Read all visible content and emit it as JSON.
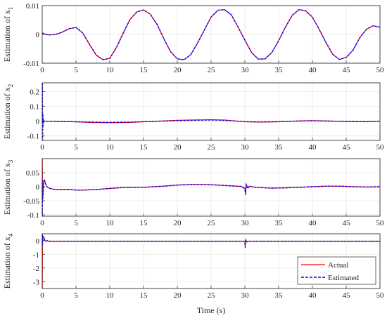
{
  "chart_data": {
    "type": "line",
    "xlabel": "Time (s)",
    "xlim": [
      0,
      50
    ],
    "x_ticks": [
      "0",
      "5",
      "10",
      "15",
      "20",
      "25",
      "30",
      "35",
      "40",
      "45",
      "50"
    ],
    "grid": true,
    "legend": {
      "placement": "bottom-right",
      "entries": [
        "Actual",
        "Estimated"
      ]
    },
    "colors": {
      "actual": "#ff0000",
      "estimated": "#0000ff"
    },
    "subplots": [
      {
        "ylabel_prefix": "Estimation of ",
        "ylabel_var": "x",
        "ylabel_sub": "1",
        "ylim": [
          -0.01,
          0.01
        ],
        "y_ticks": [
          {
            "value": 0.01,
            "label": "0.01"
          },
          {
            "value": 0,
            "label": "0"
          },
          {
            "value": -0.01,
            "label": "-0.01"
          }
        ],
        "series": [
          {
            "role": "actual",
            "x": [
              0,
              0.5,
              1,
              2,
              3,
              4,
              5,
              6,
              7,
              8,
              9,
              10,
              11,
              12,
              13,
              14,
              15,
              16,
              17,
              18,
              19,
              20,
              21,
              22,
              23,
              24,
              25,
              26,
              27,
              28,
              29,
              30,
              31,
              32,
              33,
              34,
              35,
              36,
              37,
              38,
              39,
              40,
              41,
              42,
              43,
              44,
              45,
              46,
              47,
              48,
              49,
              50
            ],
            "y": [
              0.0002,
              0,
              -0.0002,
              0,
              0.0008,
              0.002,
              0.0024,
              0.0005,
              -0.0035,
              -0.0072,
              -0.0088,
              -0.0083,
              -0.0045,
              0.0005,
              0.0052,
              0.0078,
              0.0085,
              0.007,
              0.0035,
              -0.0015,
              -0.006,
              -0.0085,
              -0.0088,
              -0.007,
              -0.003,
              0.0015,
              0.006,
              0.0084,
              0.0086,
              0.0068,
              0.0025,
              -0.002,
              -0.0063,
              -0.0086,
              -0.0085,
              -0.0063,
              -0.0022,
              0.0025,
              0.0066,
              0.0086,
              0.0082,
              0.006,
              0.0018,
              -0.0028,
              -0.0069,
              -0.0087,
              -0.008,
              -0.0055,
              -0.0012,
              0.0018,
              0.003,
              0.0025
            ]
          },
          {
            "role": "estimated",
            "x": [
              0,
              0.5,
              1,
              2,
              3,
              4,
              5,
              6,
              7,
              8,
              9,
              10,
              11,
              12,
              13,
              14,
              15,
              16,
              17,
              18,
              19,
              20,
              21,
              22,
              23,
              24,
              25,
              26,
              27,
              28,
              29,
              30,
              31,
              32,
              33,
              34,
              35,
              36,
              37,
              38,
              39,
              40,
              41,
              42,
              43,
              44,
              45,
              46,
              47,
              48,
              49,
              50
            ],
            "y": [
              0.0005,
              0,
              -0.0002,
              0,
              0.0008,
              0.002,
              0.0024,
              0.0005,
              -0.0035,
              -0.0072,
              -0.0088,
              -0.0083,
              -0.0045,
              0.0005,
              0.0052,
              0.0078,
              0.0085,
              0.007,
              0.0035,
              -0.0015,
              -0.006,
              -0.0085,
              -0.0088,
              -0.007,
              -0.003,
              0.0015,
              0.006,
              0.0084,
              0.0086,
              0.0068,
              0.0025,
              -0.002,
              -0.0063,
              -0.0086,
              -0.0085,
              -0.0063,
              -0.0022,
              0.0025,
              0.0066,
              0.0086,
              0.0082,
              0.006,
              0.0018,
              -0.0028,
              -0.0069,
              -0.0087,
              -0.008,
              -0.0055,
              -0.0012,
              0.0018,
              0.003,
              0.0025
            ]
          }
        ]
      },
      {
        "ylabel_prefix": "Estimation of ",
        "ylabel_var": "x",
        "ylabel_sub": "2",
        "ylim": [
          -0.13,
          0.26
        ],
        "y_ticks": [
          {
            "value": 0.2,
            "label": "0.2"
          },
          {
            "value": 0.1,
            "label": "0.1"
          },
          {
            "value": 0,
            "label": "0"
          },
          {
            "value": -0.1,
            "label": "-0.1"
          }
        ],
        "series": [
          {
            "role": "actual",
            "x": [
              0,
              0.05,
              0.1,
              0.2,
              0.5,
              1,
              3,
              5,
              7,
              10,
              13,
              15,
              18,
              20,
              22,
              25,
              27,
              28,
              30,
              32,
              35,
              38,
              40,
              42,
              45,
              48,
              50
            ],
            "y": [
              0,
              0,
              0,
              0,
              0,
              0,
              -0.002,
              -0.004,
              -0.008,
              -0.01,
              -0.008,
              -0.004,
              0.002,
              0.006,
              0.008,
              0.01,
              0.008,
              0.004,
              -0.004,
              -0.006,
              -0.004,
              0.002,
              0.004,
              0.002,
              -0.002,
              -0.004,
              0
            ]
          },
          {
            "role": "estimated",
            "x": [
              0,
              0.03,
              0.06,
              0.1,
              0.15,
              0.2,
              0.3,
              0.5,
              1,
              3,
              5,
              7,
              10,
              13,
              15,
              18,
              20,
              22,
              25,
              27,
              28,
              30,
              32,
              35,
              38,
              40,
              42,
              45,
              48,
              50
            ],
            "y": [
              0,
              0.26,
              -0.13,
              0.05,
              -0.03,
              0.01,
              0,
              0,
              0,
              -0.002,
              -0.004,
              -0.006,
              -0.008,
              -0.006,
              -0.003,
              0.001,
              0.004,
              0.006,
              0.008,
              0.006,
              0.003,
              -0.003,
              -0.005,
              -0.003,
              0.001,
              0.003,
              0.001,
              -0.001,
              -0.003,
              0
            ]
          }
        ]
      },
      {
        "ylabel_prefix": "Estimation of ",
        "ylabel_var": "x",
        "ylabel_sub": "3",
        "ylim": [
          -0.105,
          0.1
        ],
        "y_ticks": [
          {
            "value": 0.05,
            "label": "0.05"
          },
          {
            "value": 0,
            "label": "0"
          },
          {
            "value": -0.05,
            "label": "-0.05"
          },
          {
            "value": -0.1,
            "label": "-0.1"
          }
        ],
        "series": [
          {
            "role": "actual",
            "x": [
              0,
              0.02,
              0.05,
              0.1,
              0.2,
              0.35,
              0.5,
              0.7,
              1,
              1.5,
              2,
              3,
              4,
              5,
              6,
              8,
              10,
              12,
              15,
              18,
              20,
              22,
              24,
              26,
              28,
              29.5,
              30,
              30.1,
              30.2,
              30.4,
              30.7,
              31,
              32,
              34,
              36,
              38,
              40,
              42,
              44,
              46,
              48,
              50
            ],
            "y": [
              0,
              0.1,
              -0.05,
              -0.03,
              0.02,
              0.025,
              0.01,
              0,
              -0.005,
              -0.008,
              -0.01,
              -0.01,
              -0.01,
              -0.012,
              -0.012,
              -0.01,
              -0.006,
              -0.003,
              -0.002,
              0.002,
              0.006,
              0.008,
              0.008,
              0.006,
              0.003,
              0.001,
              -0.005,
              -0.022,
              0.008,
              -0.004,
              0.002,
              0,
              -0.003,
              -0.005,
              -0.004,
              -0.002,
              0,
              0.002,
              0.002,
              0,
              -0.001,
              0
            ]
          },
          {
            "role": "estimated",
            "x": [
              0,
              0.02,
              0.05,
              0.1,
              0.2,
              0.35,
              0.5,
              0.7,
              1,
              1.5,
              2,
              3,
              4,
              5,
              6,
              8,
              10,
              12,
              15,
              18,
              20,
              22,
              24,
              26,
              28,
              29.5,
              30,
              30.1,
              30.2,
              30.4,
              30.7,
              31,
              32,
              34,
              36,
              38,
              40,
              42,
              44,
              46,
              48,
              50
            ],
            "y": [
              0,
              -0.105,
              0.02,
              -0.04,
              0.01,
              0.022,
              0.01,
              0,
              -0.005,
              -0.008,
              -0.01,
              -0.01,
              -0.01,
              -0.012,
              -0.012,
              -0.01,
              -0.006,
              -0.003,
              -0.002,
              0.002,
              0.006,
              0.008,
              0.008,
              0.006,
              0.003,
              0.001,
              -0.008,
              -0.028,
              0.01,
              -0.006,
              0.002,
              0,
              -0.003,
              -0.005,
              -0.004,
              -0.002,
              0,
              0.002,
              0.002,
              0,
              -0.001,
              0
            ]
          }
        ]
      },
      {
        "ylabel_prefix": "Estimation of ",
        "ylabel_var": "x",
        "ylabel_sub": "4",
        "ylim": [
          -3.5,
          0.5
        ],
        "y_ticks": [
          {
            "value": 0,
            "label": "0"
          },
          {
            "value": -1,
            "label": "-1"
          },
          {
            "value": -2,
            "label": "-2"
          },
          {
            "value": -3,
            "label": "-3"
          }
        ],
        "series": [
          {
            "role": "actual",
            "x": [
              0,
              0.02,
              0.05,
              0.1,
              0.2,
              0.3,
              0.5,
              0.8,
              1,
              5,
              10,
              20,
              29.8,
              30,
              30.05,
              30.1,
              30.3,
              30.6,
              31,
              40,
              50
            ],
            "y": [
              0,
              -3.5,
              0.4,
              0.2,
              0.3,
              0.15,
              -0.05,
              0,
              -0.05,
              -0.05,
              -0.05,
              -0.05,
              -0.05,
              -0.1,
              -0.45,
              0.05,
              -0.1,
              -0.05,
              -0.05,
              -0.05,
              -0.05
            ]
          },
          {
            "role": "estimated",
            "x": [
              0,
              0.02,
              0.05,
              0.1,
              0.2,
              0.3,
              0.5,
              0.8,
              1,
              5,
              10,
              20,
              29.8,
              30,
              30.05,
              30.1,
              30.3,
              30.6,
              31,
              40,
              50
            ],
            "y": [
              0,
              0.5,
              -0.3,
              0.3,
              0.2,
              0.1,
              -0.05,
              0,
              -0.05,
              -0.05,
              -0.05,
              -0.05,
              -0.05,
              -0.1,
              -0.5,
              0.08,
              -0.1,
              -0.05,
              -0.05,
              -0.05,
              -0.05
            ]
          }
        ]
      }
    ]
  }
}
